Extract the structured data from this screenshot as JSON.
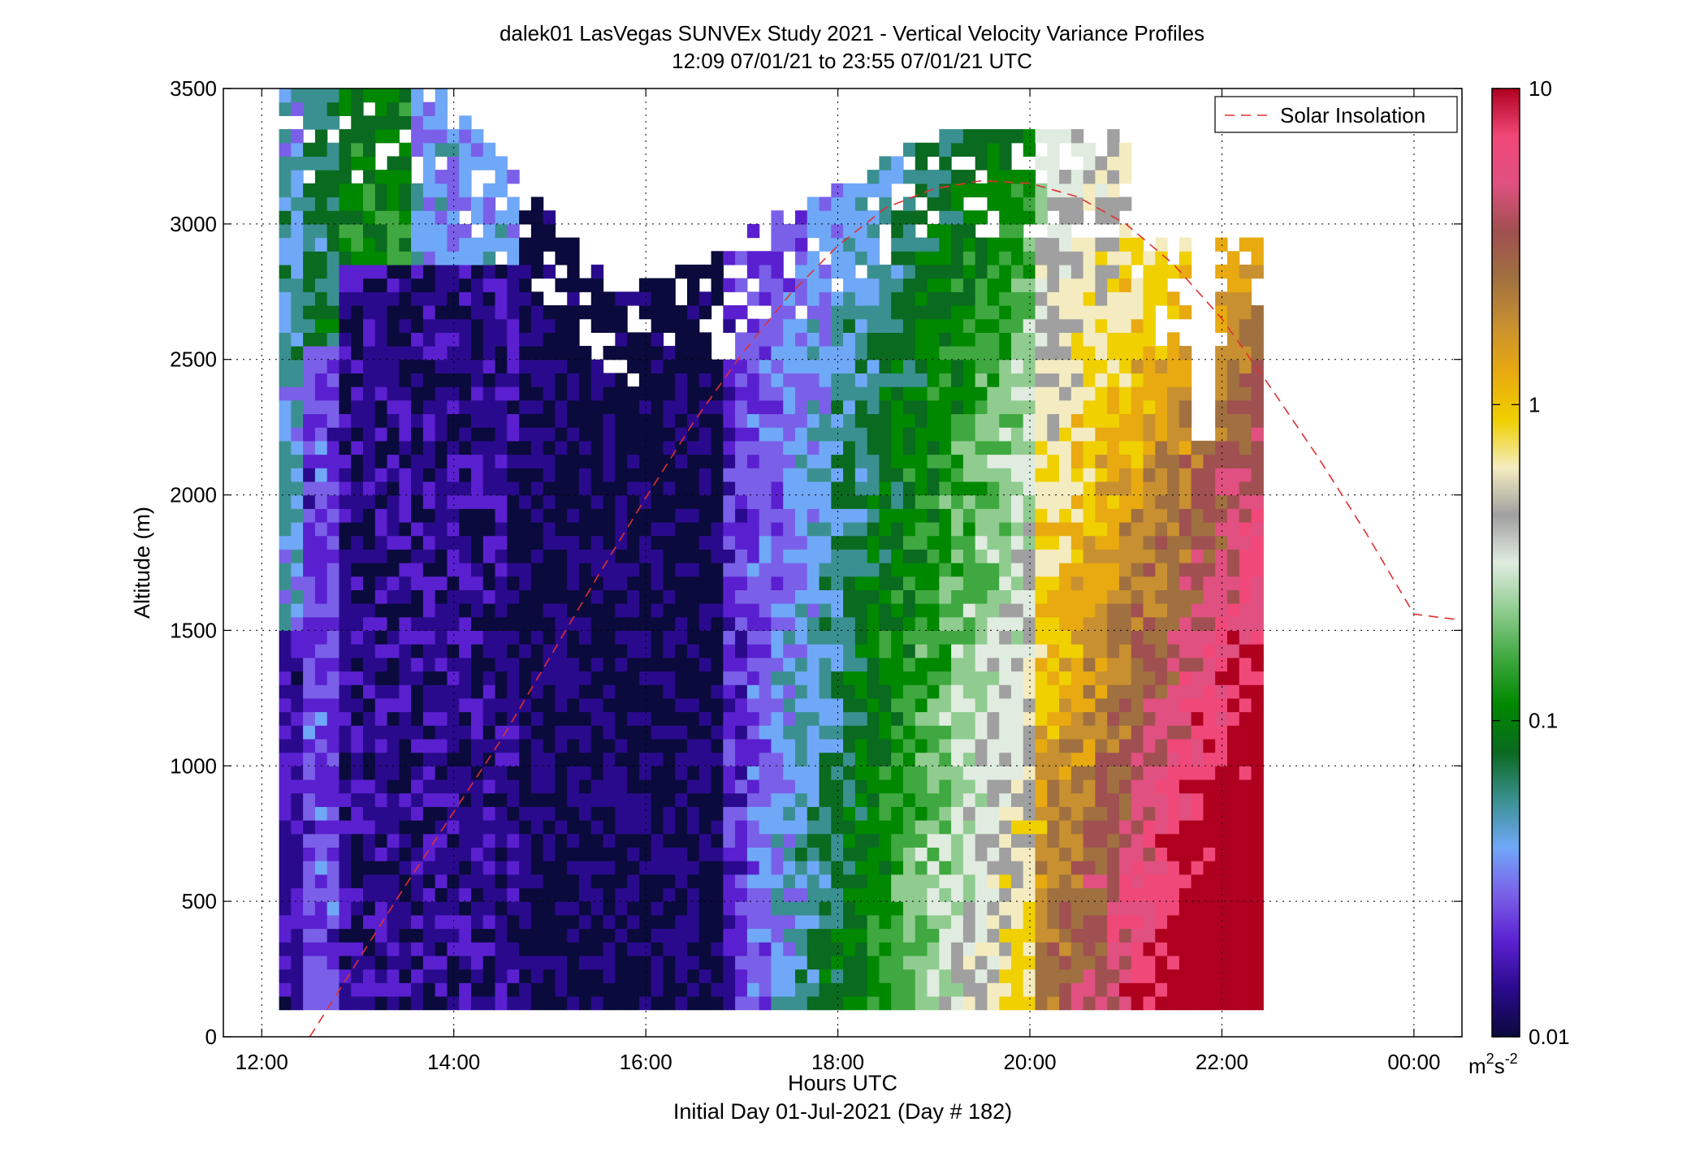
{
  "chart_data": {
    "type": "heatmap",
    "title": "dalek01 LasVegas SUNVEx Study 2021 - Vertical Velocity Variance Profiles",
    "subtitle": "12:09 07/01/21 to 23:55 07/01/21  UTC",
    "xlabel": "Hours UTC",
    "xlabel2": "Initial Day 01-Jul-2021 (Day # 182)",
    "ylabel": "Altitude (m)",
    "xlim": [
      11.6,
      24.5
    ],
    "ylim": [
      0,
      3500
    ],
    "x_ticks": [
      {
        "value": 12,
        "label": "12:00"
      },
      {
        "value": 14,
        "label": "14:00"
      },
      {
        "value": 16,
        "label": "16:00"
      },
      {
        "value": 18,
        "label": "18:00"
      },
      {
        "value": 20,
        "label": "20:00"
      },
      {
        "value": 22,
        "label": "22:00"
      },
      {
        "value": 24,
        "label": "00:00"
      }
    ],
    "y_ticks": [
      {
        "value": 0,
        "label": "0"
      },
      {
        "value": 500,
        "label": "500"
      },
      {
        "value": 1000,
        "label": "1000"
      },
      {
        "value": 1500,
        "label": "1500"
      },
      {
        "value": 2000,
        "label": "2000"
      },
      {
        "value": 2500,
        "label": "2500"
      },
      {
        "value": 3000,
        "label": "3000"
      },
      {
        "value": 3500,
        "label": "3500"
      }
    ],
    "grid": true,
    "colorbar": {
      "scale": "log",
      "range": [
        0.01,
        10
      ],
      "unit_base": "m",
      "unit_sup1": "2",
      "unit_mid": "s",
      "unit_sup2": "-2",
      "ticks": [
        {
          "value": 10,
          "label": "10"
        },
        {
          "value": 1,
          "label": "1"
        },
        {
          "value": 0.1,
          "label": "0.1"
        },
        {
          "value": 0.01,
          "label": "0.01"
        }
      ],
      "colors": [
        "#0a0a3c",
        "#2a0a8c",
        "#5a20d0",
        "#7a60e8",
        "#70a8f8",
        "#3a9090",
        "#0a6a20",
        "#008800",
        "#40a840",
        "#90cc90",
        "#e0ece0",
        "#a0a0a0",
        "#f4ecc0",
        "#f0d000",
        "#e8aa10",
        "#c89030",
        "#a07040",
        "#a05050",
        "#e05080",
        "#f04878",
        "#b00020"
      ]
    },
    "grid_x": {
      "start": 12.18,
      "step": 0.125,
      "count": 82
    },
    "grid_y": {
      "start": 100,
      "step": 50,
      "count": 69
    },
    "legend": {
      "position": "top-right",
      "label": "Solar Insolation",
      "color": "#e03030"
    },
    "solar_insolation": {
      "x": [
        12.5,
        13.0,
        13.5,
        14.0,
        14.5,
        15.0,
        15.5,
        16.0,
        16.5,
        17.0,
        17.5,
        18.0,
        18.5,
        19.0,
        19.5,
        20.0,
        20.5,
        21.0,
        21.5,
        22.0,
        22.5,
        23.0,
        23.5,
        24.0,
        24.45
      ],
      "y": [
        0,
        280,
        560,
        830,
        1100,
        1400,
        1700,
        1990,
        2270,
        2520,
        2740,
        2920,
        3060,
        3130,
        3160,
        3150,
        3100,
        3000,
        2850,
        2650,
        2400,
        2140,
        1860,
        1560,
        1540
      ]
    }
  }
}
